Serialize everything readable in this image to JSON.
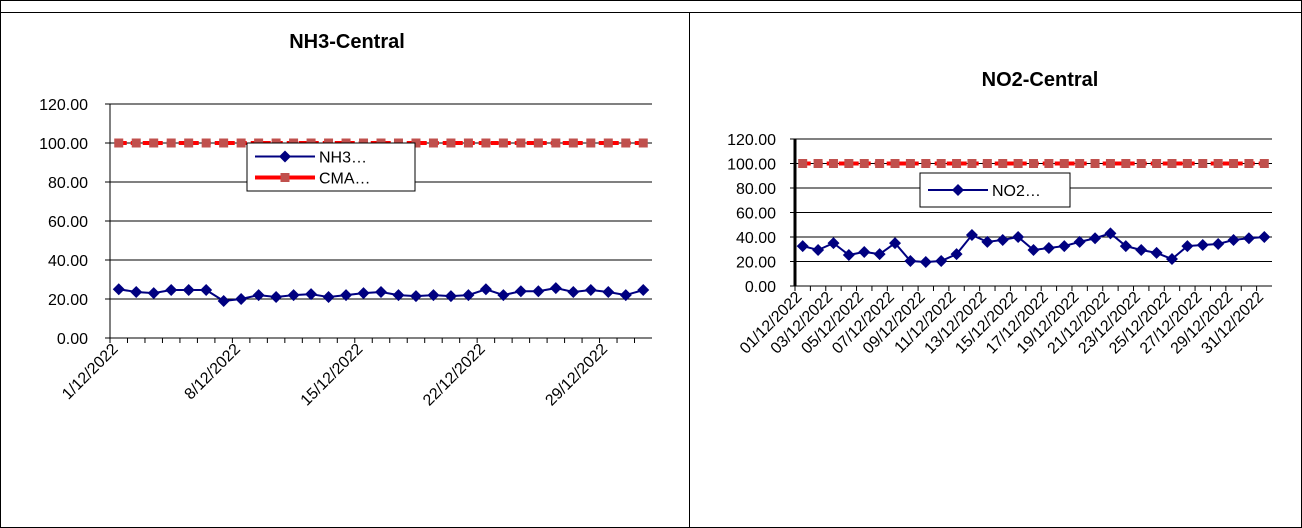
{
  "chart_data": [
    {
      "type": "line",
      "title": "NH3-Central",
      "categories": [
        "1/12/2022",
        null,
        null,
        null,
        null,
        null,
        null,
        "8/12/2022",
        null,
        null,
        null,
        null,
        null,
        null,
        "15/12/2022",
        null,
        null,
        null,
        null,
        null,
        null,
        "22/12/2022",
        null,
        null,
        null,
        null,
        null,
        null,
        "29/12/2022",
        null,
        null
      ],
      "series": [
        {
          "name": "NH3…",
          "color": "#000080",
          "marker": "diamond",
          "values": [
            25,
            23.6,
            23,
            24.6,
            24.6,
            24.6,
            19,
            20,
            22,
            21,
            22,
            22.5,
            21,
            22,
            23,
            23.6,
            22,
            21.5,
            22,
            21.5,
            22,
            25,
            22,
            24,
            24,
            25.6,
            23.6,
            24.6,
            23.6,
            22,
            24.6
          ]
        },
        {
          "name": "CMA…",
          "color": "#ff0000",
          "marker": "square",
          "values": [
            100,
            100,
            100,
            100,
            100,
            100,
            100,
            100,
            100,
            100,
            100,
            100,
            100,
            100,
            100,
            100,
            100,
            100,
            100,
            100,
            100,
            100,
            100,
            100,
            100,
            100,
            100,
            100,
            100,
            100,
            100
          ]
        }
      ],
      "ylim": [
        0,
        120
      ],
      "yticks": [
        {
          "value": 0,
          "label": "0.00"
        },
        {
          "value": 20,
          "label": "20.00"
        },
        {
          "value": 40,
          "label": "40.00"
        },
        {
          "value": 60,
          "label": "60.00"
        },
        {
          "value": 80,
          "label": "80.00"
        },
        {
          "value": 100,
          "label": "100.00"
        },
        {
          "value": 120,
          "label": "120.00"
        }
      ],
      "grid": true
    },
    {
      "type": "line",
      "title": "NO2-Central",
      "categories": [
        "01/12/2022",
        null,
        "03/12/2022",
        null,
        "05/12/2022",
        null,
        "07/12/2022",
        null,
        "09/12/2022",
        null,
        "11/12/2022",
        null,
        "13/12/2022",
        null,
        "15/12/2022",
        null,
        "17/12/2022",
        null,
        "19/12/2022",
        null,
        "21/12/2022",
        null,
        "23/12/2022",
        null,
        "25/12/2022",
        null,
        "27/12/2022",
        null,
        "29/12/2022",
        null,
        "31/12/2022"
      ],
      "series": [
        {
          "name": "NO2…",
          "color": "#000080",
          "marker": "diamond",
          "values": [
            32.6,
            29.4,
            35,
            25.3,
            27.8,
            26,
            35,
            20.4,
            19.6,
            20.4,
            26,
            41.6,
            36,
            37.6,
            40,
            29.4,
            31,
            32.6,
            36,
            39,
            43,
            32.6,
            29.4,
            27,
            22,
            32.6,
            33.5,
            34.3,
            37.6,
            39,
            40
          ]
        },
        {
          "color": "#ff0000",
          "marker": "square",
          "values": [
            100,
            100,
            100,
            100,
            100,
            100,
            100,
            100,
            100,
            100,
            100,
            100,
            100,
            100,
            100,
            100,
            100,
            100,
            100,
            100,
            100,
            100,
            100,
            100,
            100,
            100,
            100,
            100,
            100,
            100,
            100
          ]
        }
      ],
      "ylim": [
        0,
        120
      ],
      "yticks": [
        {
          "value": 0,
          "label": "0.00"
        },
        {
          "value": 20,
          "label": "20.00"
        },
        {
          "value": 40,
          "label": "40.00"
        },
        {
          "value": 60,
          "label": "60.00"
        },
        {
          "value": 80,
          "label": "80.00"
        },
        {
          "value": 100,
          "label": "100.00"
        },
        {
          "value": 120,
          "label": "120.00"
        }
      ],
      "grid": true
    }
  ]
}
